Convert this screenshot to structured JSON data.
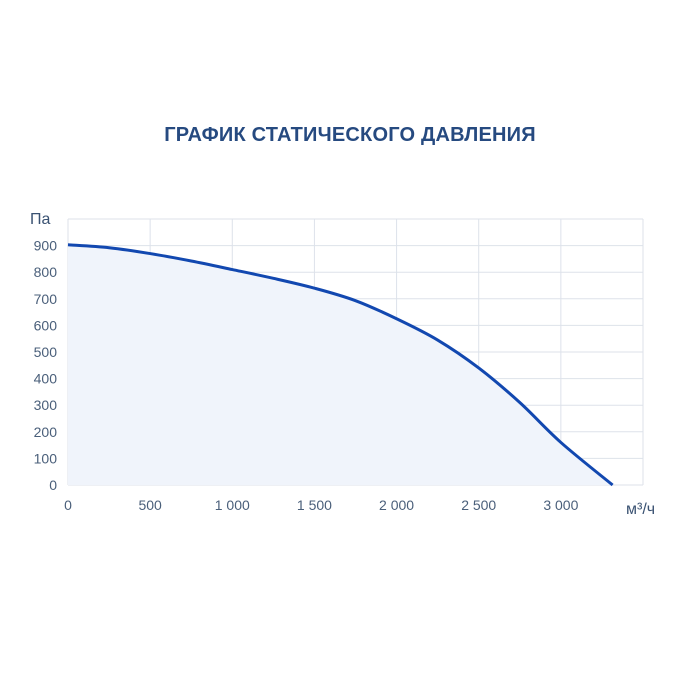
{
  "chart_data": {
    "type": "area",
    "title": "ГРАФИК СТАТИЧЕСКОГО ДАВЛЕНИЯ",
    "xlabel": "м³/ч",
    "ylabel": "Па",
    "xlim": [
      0,
      3500
    ],
    "ylim": [
      0,
      1000
    ],
    "grid": true,
    "x_ticks": [
      0,
      500,
      1000,
      1500,
      2000,
      2500,
      3000
    ],
    "x_tick_labels": [
      "0",
      "500",
      "1 000",
      "1 500",
      "2 000",
      "2 500",
      "3 000"
    ],
    "y_ticks": [
      0,
      100,
      200,
      300,
      400,
      500,
      600,
      700,
      800,
      900
    ],
    "y_tick_labels": [
      "0",
      "100",
      "200",
      "300",
      "400",
      "500",
      "600",
      "700",
      "800",
      "900"
    ],
    "series": [
      {
        "x": [
          0,
          250,
          500,
          750,
          1000,
          1250,
          1500,
          1750,
          2000,
          2250,
          2500,
          2750,
          3000,
          3315
        ],
        "y": [
          903,
          892,
          870,
          842,
          810,
          777,
          740,
          693,
          625,
          545,
          440,
          310,
          160,
          0
        ]
      }
    ],
    "colors": {
      "line": "#1248b0",
      "fill": "#f0f4fb",
      "grid": "#dde2ea",
      "title": "#264a80"
    }
  }
}
